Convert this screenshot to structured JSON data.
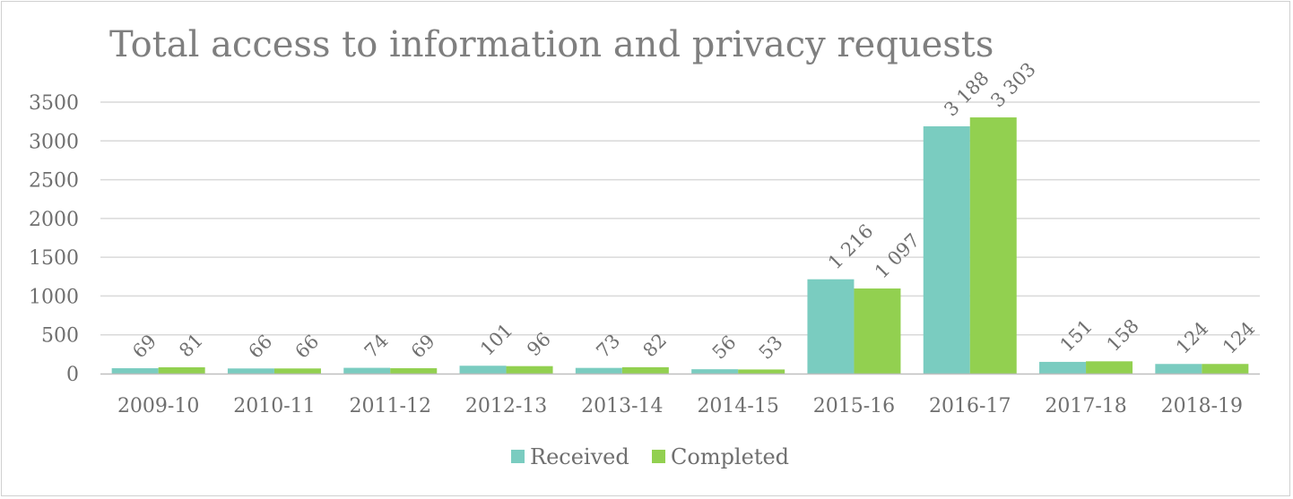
{
  "chart_data": {
    "type": "bar",
    "title": "Total access to information and privacy requests",
    "xlabel": "",
    "ylabel": "",
    "ylim": [
      0,
      3500
    ],
    "yticks": [
      0,
      500,
      1000,
      1500,
      2000,
      2500,
      3000,
      3500
    ],
    "grid": true,
    "legend": "bottom",
    "categories": [
      "2009-10",
      "2010-11",
      "2011-12",
      "2012-13",
      "2013-14",
      "2014-15",
      "2015-16",
      "2016-17",
      "2017-18",
      "2018-19"
    ],
    "series": [
      {
        "name": "Received",
        "color": "#7accc0",
        "values": [
          69,
          66,
          74,
          101,
          73,
          56,
          1216,
          3188,
          151,
          124
        ],
        "labels": [
          "69",
          "66",
          "74",
          "101",
          "73",
          "56",
          "1 216",
          "3 188",
          "151",
          "124"
        ]
      },
      {
        "name": "Completed",
        "color": "#92d050",
        "values": [
          81,
          66,
          69,
          96,
          82,
          53,
          1097,
          3303,
          158,
          124
        ],
        "labels": [
          "81",
          "66",
          "69",
          "96",
          "82",
          "53",
          "1 097",
          "3 303",
          "158",
          "124"
        ]
      }
    ]
  }
}
